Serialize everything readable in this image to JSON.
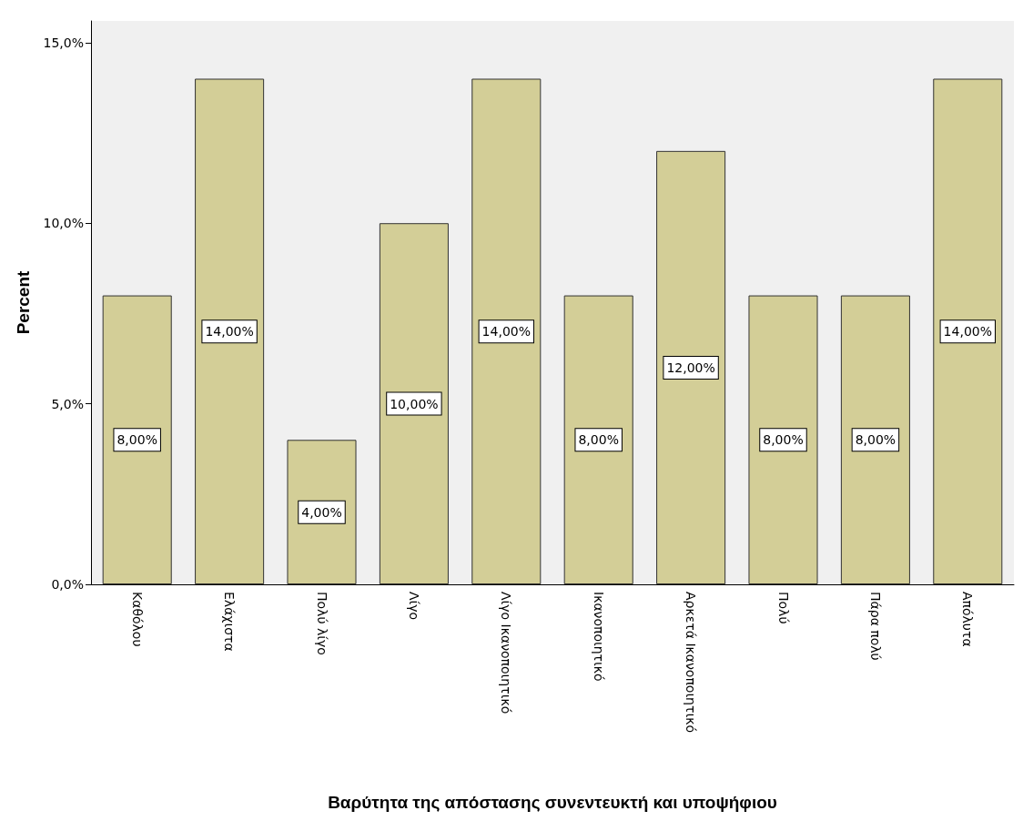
{
  "chart_data": {
    "type": "bar",
    "xlabel": "Βαρύτητα της απόστασης συνεντευκτή και υποψήφιου",
    "ylabel": "Percent",
    "categories": [
      "Καθόλου",
      "Ελάχιστα",
      "Πολύ λίγο",
      "Λίγο",
      "Λίγο Ικανοποιητικό",
      "Ικανοποιητικό",
      "Αρκετά Ικανοποιητικό",
      "Πολύ",
      "Πάρα πολύ",
      "Απόλυτα"
    ],
    "values": [
      8,
      14,
      4,
      10,
      14,
      8,
      12,
      8,
      8,
      14
    ],
    "value_labels": [
      "8,00%",
      "14,00%",
      "4,00%",
      "10,00%",
      "14,00%",
      "8,00%",
      "12,00%",
      "8,00%",
      "8,00%",
      "14,00%"
    ],
    "color": "#d3ce97",
    "ylim": [
      0,
      15.6
    ],
    "yticks": [
      {
        "value": 0,
        "label": "0,0%"
      },
      {
        "value": 5,
        "label": "5,0%"
      },
      {
        "value": 10,
        "label": "10,0%"
      },
      {
        "value": 15,
        "label": "15,0%"
      }
    ],
    "grid": false
  }
}
